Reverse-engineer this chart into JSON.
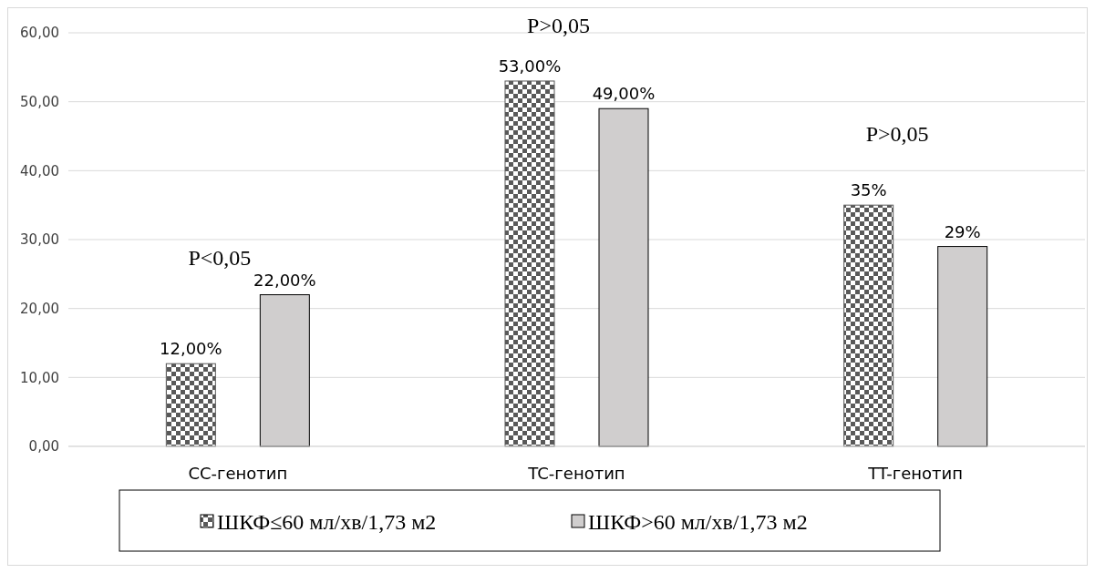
{
  "chart_data": {
    "type": "bar",
    "categories": [
      "CC-генотип",
      "TC-генотип",
      "TT-генотип"
    ],
    "series": [
      {
        "name": "ШКФ≤60 мл/хв/1,73 м2",
        "color": "#595959",
        "values": [
          12,
          53,
          35
        ],
        "value_labels": [
          "12,00%",
          "53,00%",
          "35%"
        ]
      },
      {
        "name": "ШКФ>60 мл/хв/1,73 м2",
        "color": "#d0cece",
        "values": [
          22,
          49,
          29
        ],
        "value_labels": [
          "22,00%",
          "49,00%",
          "29%"
        ]
      }
    ],
    "ylim": [
      0,
      60
    ],
    "yticks": [
      {
        "value": 0,
        "label": "0,00"
      },
      {
        "value": 10,
        "label": "10,00"
      },
      {
        "value": 20,
        "label": "20,00"
      },
      {
        "value": 30,
        "label": "30,00"
      },
      {
        "value": 40,
        "label": "40,00"
      },
      {
        "value": 50,
        "label": "50,00"
      },
      {
        "value": 60,
        "label": "60,00"
      }
    ],
    "grid": "y",
    "legend": "bottom",
    "annotations": [
      "P<0,05",
      "P>0,05",
      "P>0,05"
    ]
  }
}
